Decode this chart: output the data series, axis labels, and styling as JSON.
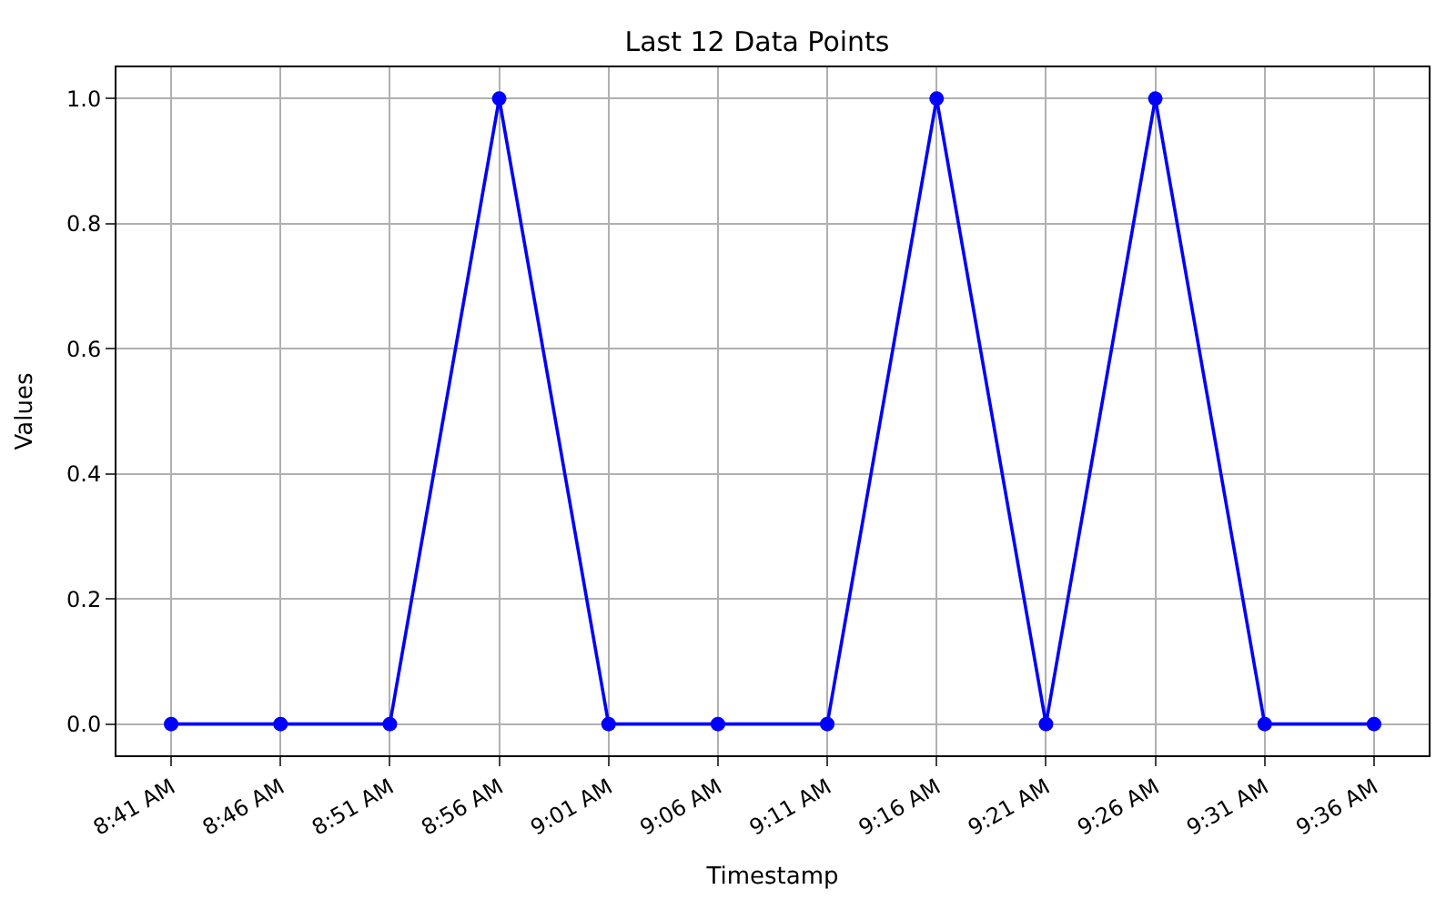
{
  "chart_data": {
    "type": "line",
    "title": "Last 12 Data Points",
    "xlabel": "Timestamp",
    "ylabel": "Values",
    "categories": [
      "8:41 AM",
      "8:46 AM",
      "8:51 AM",
      "8:56 AM",
      "9:01 AM",
      "9:06 AM",
      "9:11 AM",
      "9:16 AM",
      "9:21 AM",
      "9:26 AM",
      "9:31 AM",
      "9:36 AM"
    ],
    "series": [
      {
        "color": "#0000ff",
        "values": [
          0,
          0,
          0,
          1,
          0,
          0,
          0,
          1,
          0,
          1,
          0,
          0
        ]
      }
    ],
    "ylim": [
      -0.05,
      1.05
    ],
    "yticks": [
      {
        "value": 0,
        "label": "0.0"
      },
      {
        "value": 0.2,
        "label": "0.2"
      },
      {
        "value": 0.4,
        "label": "0.4"
      },
      {
        "value": 0.6,
        "label": "0.6"
      },
      {
        "value": 0.8,
        "label": "0.8"
      },
      {
        "value": 1,
        "label": "1.0"
      }
    ],
    "grid": true,
    "marker": "circle",
    "line_style": "solid"
  }
}
